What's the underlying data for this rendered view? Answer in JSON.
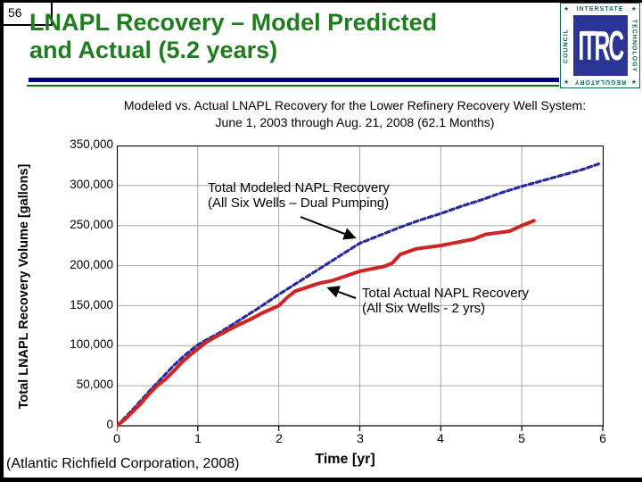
{
  "slide": {
    "number": "56",
    "title_line1": "LNAPL Recovery – Model Predicted",
    "title_line2": "and Actual (5.2 years)",
    "caption": "(Atlantic Richfield Corporation, 2008)"
  },
  "logo": {
    "center": "ITRC",
    "top": "INTERSTATE",
    "right": "TECHNOLOGY",
    "bottom": "REGULATORY",
    "left": "COUNCIL",
    "star": "★"
  },
  "colors": {
    "title_green": "#1f7d1f",
    "rule_navy": "#000080",
    "rule_green": "#127912",
    "modeled_blue": "#2a2aa0",
    "actual_red": "#d02424",
    "gridline_gray": "#a8a8a8"
  },
  "chart_data": {
    "type": "line",
    "title_line1": "Modeled vs. Actual LNAPL Recovery for the Lower Refinery Recovery Well System:",
    "title_line2": "June 1, 2003 through Aug. 21, 2008 (62.1 Months)",
    "xlabel": "Time [yr]",
    "ylabel": "Total LNAPL Recovery Volume [gallons]",
    "xlim": [
      0,
      6
    ],
    "ylim": [
      0,
      350000
    ],
    "grid": true,
    "legend_position": "none (in-plot annotations with arrows)",
    "x_ticks": [
      0,
      1,
      2,
      3,
      4,
      5,
      6
    ],
    "x_tick_labels": [
      "0",
      "1",
      "2",
      "3",
      "4",
      "5",
      "6"
    ],
    "y_ticks": [
      350000,
      300000,
      250000,
      200000,
      150000,
      100000,
      50000,
      0
    ],
    "y_tick_labels": [
      "350,000",
      "300,000",
      "250,000",
      "200,000",
      "150,000",
      "100,000",
      "50,000",
      "0"
    ],
    "series": [
      {
        "name": "Total Modeled NAPL Recovery (All Six Wells – Dual Pumping)",
        "color": "#2a2aa0",
        "style": "dashed",
        "width": 3.2,
        "x": [
          0,
          0.1,
          0.25,
          0.4,
          0.55,
          0.7,
          0.85,
          1.0,
          1.1,
          1.25,
          1.5,
          1.75,
          2.0,
          2.25,
          2.5,
          2.75,
          3.0,
          3.25,
          3.5,
          3.75,
          4.0,
          4.25,
          4.5,
          4.75,
          5.0,
          5.25,
          5.5,
          5.75,
          5.95
        ],
        "y": [
          0,
          10000,
          26000,
          43000,
          59000,
          75000,
          89000,
          101000,
          107000,
          115000,
          131000,
          147000,
          164000,
          180000,
          196000,
          212000,
          228000,
          238000,
          248000,
          257000,
          265000,
          274000,
          282000,
          291000,
          299000,
          306000,
          313000,
          320000,
          327000
        ]
      },
      {
        "name": "Total Actual NAPL Recovery (All Six Wells - 2 yrs)",
        "color": "#d02424",
        "style": "solid",
        "width": 4,
        "x": [
          0,
          0.1,
          0.2,
          0.3,
          0.4,
          0.5,
          0.6,
          0.7,
          0.8,
          0.9,
          1.0,
          1.1,
          1.2,
          1.35,
          1.5,
          1.65,
          1.8,
          2.0,
          2.1,
          2.2,
          2.35,
          2.5,
          2.65,
          2.8,
          3.0,
          3.15,
          3.3,
          3.4,
          3.5,
          3.7,
          3.85,
          4.0,
          4.2,
          4.4,
          4.55,
          4.7,
          4.85,
          5.0,
          5.1,
          5.15
        ],
        "y": [
          0,
          8000,
          18000,
          28000,
          40000,
          50000,
          58000,
          68000,
          79000,
          88000,
          96000,
          104000,
          110000,
          118000,
          126000,
          133000,
          141000,
          150000,
          160000,
          168000,
          173000,
          178000,
          181000,
          186000,
          193000,
          196000,
          199000,
          203000,
          214000,
          221000,
          223000,
          225000,
          229000,
          233000,
          239000,
          241000,
          243000,
          250000,
          254000,
          256000
        ]
      }
    ],
    "annotations": [
      {
        "line1": "Total Modeled NAPL Recovery",
        "line2": "(All Six Wells – Dual Pumping)"
      },
      {
        "line1": "Total Actual NAPL Recovery",
        "line2": "(All Six Wells - 2 yrs)"
      }
    ]
  }
}
